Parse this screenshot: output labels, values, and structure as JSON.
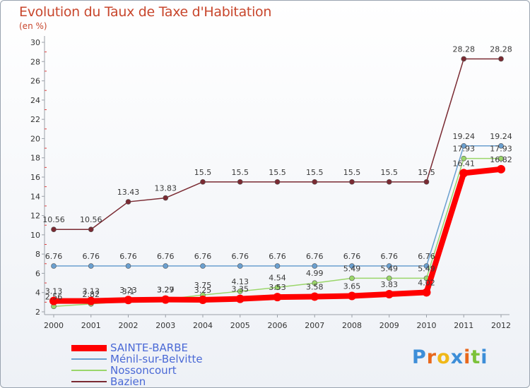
{
  "header": {
    "title": "Evolution du Taux de Taxe d'Habitation",
    "unit": "(en %)"
  },
  "brand": {
    "letters": [
      "P",
      "r",
      "o",
      "x",
      "i",
      "t",
      "i"
    ],
    "colors": [
      "#3d8ed8",
      "#e8681c",
      "#f0b818",
      "#3d8ed8",
      "#e8681c",
      "#7cc23a",
      "#3d8ed8"
    ]
  },
  "chart_data": {
    "type": "line",
    "title": "Evolution du Taux de Taxe d'Habitation",
    "ylabel": "(en %)",
    "xlabel": "",
    "x": [
      "2000",
      "2001",
      "2002",
      "2003",
      "2004",
      "2005",
      "2006",
      "2007",
      "2008",
      "2009",
      "2010",
      "2011",
      "2012"
    ],
    "ylim": [
      2,
      30
    ],
    "yticks": [
      "2",
      "4",
      "6",
      "8",
      "10",
      "12",
      "14",
      "16",
      "18",
      "20",
      "22",
      "24",
      "26",
      "28",
      "30"
    ],
    "grid": "minor tick marks only",
    "legend_position": "bottom-left",
    "series": [
      {
        "name": "SAINTE-BARBE",
        "color": "#ff0000",
        "values": [
          3.13,
          3.13,
          3.23,
          3.27,
          3.25,
          3.35,
          3.53,
          3.58,
          3.65,
          3.83,
          4.02,
          16.41,
          16.82
        ],
        "labels": [
          "3.13",
          "3.13",
          "3.23",
          "3.27",
          "3.25",
          "3.35",
          "3.53",
          "3.58",
          "3.65",
          "3.83",
          "4.02",
          "16.41",
          "16.82"
        ]
      },
      {
        "name": "Ménil-sur-Belvitte",
        "color": "#6a9fcf",
        "values": [
          6.76,
          6.76,
          6.76,
          6.76,
          6.76,
          6.76,
          6.76,
          6.76,
          6.76,
          6.76,
          6.76,
          19.24,
          19.24
        ],
        "labels": [
          "6.76",
          "6.76",
          "6.76",
          "6.76",
          "6.76",
          "6.76",
          "6.76",
          "6.76",
          "6.76",
          "6.76",
          "6.76",
          "19.24",
          "19.24"
        ]
      },
      {
        "name": "Nossoncourt",
        "color": "#9ad66a",
        "values": [
          2.56,
          2.82,
          3.1,
          3.29,
          3.75,
          4.13,
          4.54,
          4.99,
          5.49,
          5.49,
          5.49,
          17.93,
          17.93
        ],
        "labels": [
          "2.56",
          "2.82",
          "3.1",
          "3.29",
          "3.75",
          "4.13",
          "4.54",
          "4.99",
          "5.49",
          "5.49",
          "5.49",
          "17.93",
          "17.93"
        ]
      },
      {
        "name": "Bazien",
        "color": "#7a2a32",
        "values": [
          10.56,
          10.56,
          13.43,
          13.83,
          15.5,
          15.5,
          15.5,
          15.5,
          15.5,
          15.5,
          15.5,
          28.28,
          28.28
        ],
        "labels": [
          "10.56",
          "10.56",
          "13.43",
          "13.83",
          "15.5",
          "15.5",
          "15.5",
          "15.5",
          "15.5",
          "15.5",
          "15.5",
          "28.28",
          "28.28"
        ]
      }
    ]
  }
}
